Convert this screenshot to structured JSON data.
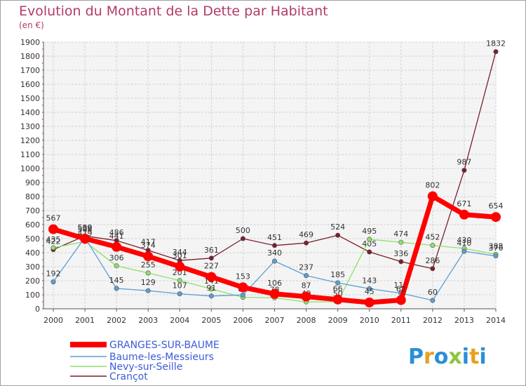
{
  "title": "Evolution du Montant de la Dette par Habitant",
  "unit": "(en €)",
  "brand": {
    "letters": [
      "P",
      "r",
      "o",
      "x",
      "i",
      "t",
      "i"
    ],
    "colors": [
      "#2a8fd8",
      "#e8a020",
      "#2a8fd8",
      "#8cc63f",
      "#2a8fd8",
      "#e8a020",
      "#2a8fd8"
    ]
  },
  "chart_data": {
    "type": "line",
    "title": "Evolution du Montant de la Dette par Habitant",
    "ylabel": "(en €)",
    "x": [
      "2000",
      "2001",
      "2002",
      "2003",
      "2004",
      "2005",
      "2006",
      "2007",
      "2008",
      "2009",
      "2010",
      "2011",
      "2012",
      "2013",
      "2014"
    ],
    "ylim": [
      0,
      1900
    ],
    "yticks": [
      0,
      100,
      200,
      300,
      400,
      500,
      600,
      700,
      800,
      900,
      1000,
      1100,
      1200,
      1300,
      1400,
      1500,
      1600,
      1700,
      1800,
      1900
    ],
    "grid": true,
    "legend": "bottom-left",
    "series": [
      {
        "name": "GRANGES-SUR-BAUME",
        "color": "#ff0000",
        "values": [
          567,
          500,
          441,
          374,
          301,
          227,
          153,
          106,
          87,
          66,
          45,
          62,
          802,
          671,
          654
        ]
      },
      {
        "name": "Baume-les-Messieurs",
        "color": "#5b9fd4",
        "values": [
          192,
          508,
          145,
          129,
          107,
          91,
          99,
          340,
          237,
          185,
          143,
          111,
          60,
          410,
          376
        ]
      },
      {
        "name": "Nevy-sur-Seille",
        "color": "#8ee06a",
        "values": [
          435,
          479,
          306,
          255,
          201,
          141,
          82,
          78,
          49,
          50,
          495,
          474,
          452,
          430,
          388
        ]
      },
      {
        "name": "Crançot",
        "color": "#7a1f2c",
        "values": [
          422,
          519,
          486,
          417,
          344,
          361,
          500,
          451,
          469,
          524,
          405,
          336,
          286,
          987,
          1832
        ]
      }
    ]
  }
}
